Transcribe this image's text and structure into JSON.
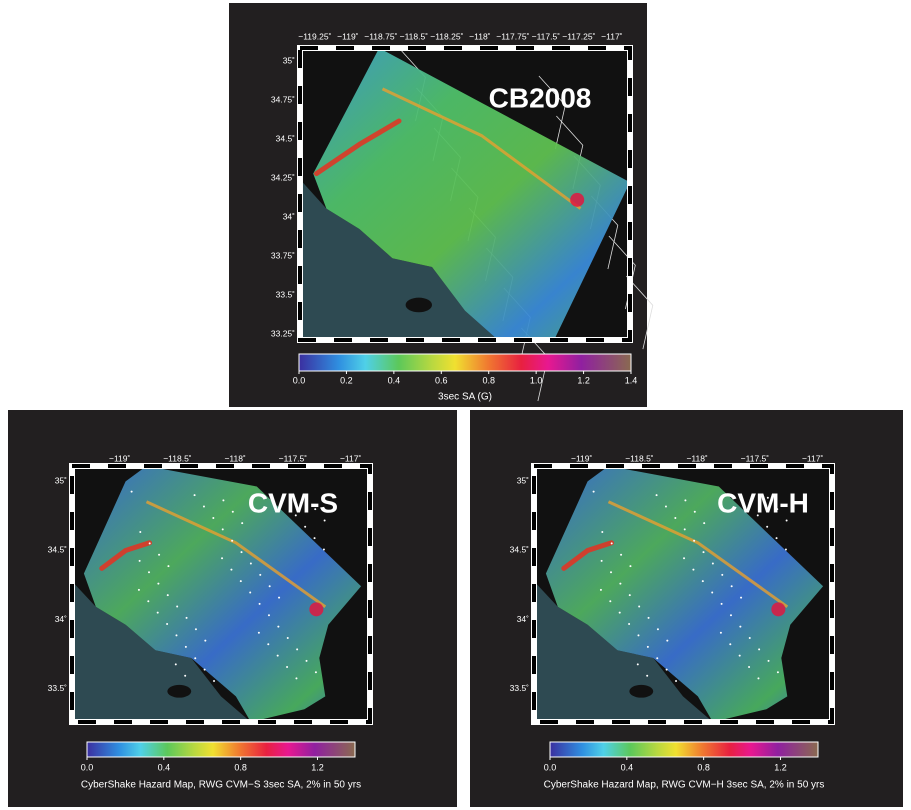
{
  "panels": [
    {
      "title": "CB2008",
      "lon_ticks": [
        "−119.25˚",
        "−119˚",
        "−118.75˚",
        "−118.5˚",
        "−118.25˚",
        "−118˚",
        "−117.75˚",
        "−117.5˚",
        "−117.25˚",
        "−117˚"
      ],
      "lat_ticks": [
        "35˚",
        "34.75˚",
        "34.5˚",
        "34.25˚",
        "34˚",
        "33.75˚",
        "33.5˚",
        "33.25˚"
      ],
      "colorbar": {
        "ticks": [
          "0.0",
          "0.2",
          "0.4",
          "0.6",
          "0.8",
          "1.0",
          "1.2",
          "1.4"
        ],
        "label": "3sec SA (G)"
      }
    },
    {
      "title": "CVM-S",
      "lon_ticks": [
        "−119˚",
        "−118.5˚",
        "−118˚",
        "−117.5˚",
        "−117˚"
      ],
      "lat_ticks": [
        "35˚",
        "34.5˚",
        "34˚",
        "33.5˚"
      ],
      "colorbar": {
        "ticks": [
          "0.0",
          "0.4",
          "0.8",
          "1.2"
        ],
        "label": "CyberShake Hazard Map, RWG CVM−S 3sec SA, 2% in 50 yrs"
      }
    },
    {
      "title": "CVM-H",
      "lon_ticks": [
        "−119˚",
        "−118.5˚",
        "−118˚",
        "−117.5˚",
        "−117˚"
      ],
      "lat_ticks": [
        "35˚",
        "34.5˚",
        "34˚",
        "33.5˚"
      ],
      "colorbar": {
        "ticks": [
          "0.0",
          "0.4",
          "0.8",
          "1.2"
        ],
        "label": "CyberShake Hazard Map, RWG CVM−H 3sec SA, 2% in 50 yrs"
      }
    }
  ]
}
